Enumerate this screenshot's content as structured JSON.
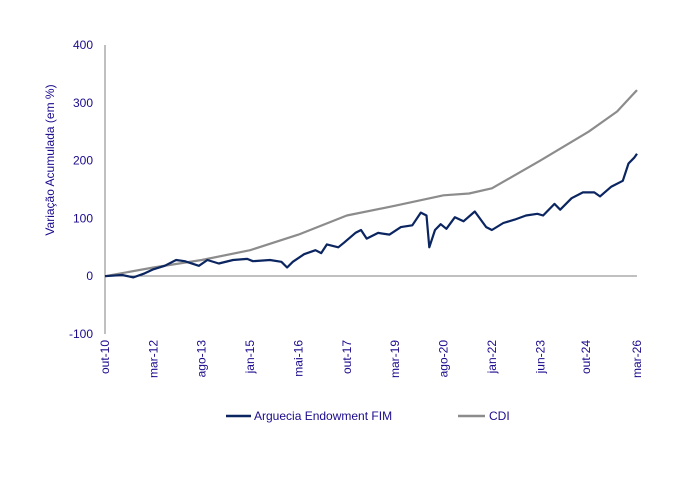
{
  "chart_data": {
    "type": "line",
    "title": "",
    "xlabel": "",
    "ylabel": "Variação Acumulada (em %)",
    "ylim": [
      -100,
      400
    ],
    "yticks": [
      "400",
      "300",
      "200",
      "100",
      "0",
      "-100"
    ],
    "ytick_values": [
      400,
      300,
      200,
      100,
      0,
      -100
    ],
    "x_unit": "months since out-10",
    "xlim": [
      0,
      187
    ],
    "xticks": [
      "out-10",
      "mar-12",
      "ago-13",
      "jan-15",
      "mai-16",
      "out-17",
      "mar-19",
      "ago-20",
      "jan-22",
      "jun-23",
      "out-24",
      "mar-26"
    ],
    "xtick_values": [
      0,
      17,
      34,
      51,
      68,
      85,
      102,
      119,
      136,
      153,
      169,
      187
    ],
    "grid": false,
    "legend_position": "bottom",
    "series": [
      {
        "name": "Arguecia Endowment FIM",
        "color": "#0b2561",
        "x": [
          0,
          6,
          10,
          14,
          17,
          21,
          25,
          28,
          33,
          36,
          40,
          45,
          50,
          52,
          58,
          62,
          64,
          66,
          70,
          74,
          76,
          78,
          82,
          84,
          88,
          90,
          92,
          96,
          100,
          104,
          108,
          111,
          113,
          114,
          116,
          118,
          120,
          123,
          126,
          130,
          134,
          136,
          140,
          144,
          148,
          152,
          154,
          158,
          160,
          164,
          168,
          172,
          174,
          178,
          182,
          184,
          186,
          187
        ],
        "values": [
          0,
          2,
          -2,
          5,
          12,
          18,
          28,
          26,
          18,
          28,
          22,
          28,
          30,
          26,
          28,
          25,
          15,
          25,
          38,
          45,
          40,
          55,
          50,
          58,
          75,
          80,
          65,
          75,
          72,
          85,
          88,
          110,
          105,
          50,
          80,
          90,
          82,
          102,
          95,
          112,
          85,
          80,
          92,
          98,
          105,
          108,
          105,
          125,
          115,
          135,
          145,
          145,
          138,
          155,
          165,
          195,
          205,
          212
        ]
      },
      {
        "name": "CDI",
        "color": "#8c8c8c",
        "x": [
          0,
          17,
          34,
          51,
          68,
          85,
          102,
          119,
          128,
          136,
          153,
          170,
          180,
          187
        ],
        "values": [
          0,
          15,
          28,
          45,
          72,
          105,
          122,
          140,
          143,
          152,
          200,
          250,
          285,
          322
        ]
      }
    ]
  }
}
